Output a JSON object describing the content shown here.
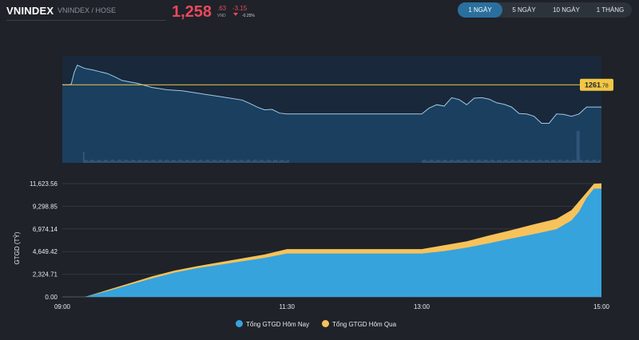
{
  "header": {
    "ticker": "VNINDEX",
    "exchange": "VNINDEX / HOSE",
    "price_main": "1,258",
    "price_decimal": ".63",
    "price_unit": "VND",
    "change": "-3.15",
    "change_pct": "-0.25%"
  },
  "tabs": [
    {
      "label": "1 NGÀY",
      "active": true
    },
    {
      "label": "5 NGÀY",
      "active": false
    },
    {
      "label": "10 NGÀY",
      "active": false
    },
    {
      "label": "1 THÁNG",
      "active": false
    }
  ],
  "colors": {
    "background": "#1f2228",
    "price_line": "#9fc9e6",
    "price_fill": "#1b3f5e",
    "reference": "#f2c744",
    "today": "#36a3dd",
    "yesterday": "#f8c25a",
    "negative": "#e8495d"
  },
  "chart_data": [
    {
      "type": "line",
      "reference_label_main": "1261",
      "reference_label_decimal": ".78",
      "reference_value": 1261.78,
      "ylim": [
        1245,
        1268
      ],
      "x": [
        "09:05",
        "09:06",
        "09:08",
        "09:10",
        "09:15",
        "09:20",
        "09:25",
        "09:30",
        "09:35",
        "09:40",
        "09:50",
        "10:00",
        "10:10",
        "10:20",
        "10:30",
        "10:40",
        "10:50",
        "11:00",
        "11:05",
        "11:10",
        "11:15",
        "11:20",
        "11:25",
        "11:30",
        "11:45",
        "12:00",
        "12:15",
        "12:30",
        "12:45",
        "13:00",
        "13:05",
        "13:10",
        "13:15",
        "13:20",
        "13:25",
        "13:30",
        "13:35",
        "13:40",
        "13:45",
        "13:50",
        "13:55",
        "14:00",
        "14:05",
        "14:10",
        "14:15",
        "14:20",
        "14:25",
        "14:30",
        "14:35",
        "14:40",
        "14:45",
        "14:50",
        "14:55",
        "15:00"
      ],
      "values": [
        1261.8,
        1262.0,
        1264.5,
        1266.0,
        1265.3,
        1265.0,
        1264.6,
        1264.2,
        1263.5,
        1262.7,
        1262.1,
        1261.2,
        1260.7,
        1260.5,
        1260.0,
        1259.5,
        1259.0,
        1258.5,
        1257.8,
        1257.0,
        1256.4,
        1256.5,
        1255.7,
        1255.5,
        1255.5,
        1255.5,
        1255.5,
        1255.5,
        1255.5,
        1255.5,
        1256.8,
        1257.5,
        1257.2,
        1259.0,
        1258.6,
        1257.5,
        1258.9,
        1259.0,
        1258.7,
        1257.9,
        1257.6,
        1257.0,
        1255.6,
        1255.5,
        1255.0,
        1253.5,
        1253.5,
        1255.5,
        1255.4,
        1255.0,
        1255.5,
        1257.0,
        1257.0,
        1257.0
      ]
    },
    {
      "type": "area",
      "ylabel": "GTGD (TỶ)",
      "ylim": [
        0,
        11623.56
      ],
      "yticks": [
        "0.00",
        "2,324.71",
        "4,649.42",
        "6,974.14",
        "9,298.85",
        "11,623.56"
      ],
      "ytick_values": [
        0,
        2324.71,
        4649.42,
        6974.14,
        9298.85,
        11623.56
      ],
      "xticks": [
        "09:00",
        "11:30",
        "13:00",
        "15:00"
      ],
      "x": [
        "09:15",
        "09:30",
        "09:45",
        "10:00",
        "10:15",
        "10:30",
        "10:45",
        "11:00",
        "11:15",
        "11:30",
        "12:00",
        "12:30",
        "13:00",
        "13:15",
        "13:30",
        "13:45",
        "14:00",
        "14:15",
        "14:30",
        "14:40",
        "14:45",
        "14:50",
        "14:55",
        "15:00"
      ],
      "series": [
        {
          "name": "Tổng GTGD Hôm Nay",
          "values": [
            0,
            600,
            1250,
            1900,
            2500,
            2950,
            3300,
            3650,
            4000,
            4450,
            4450,
            4450,
            4450,
            4700,
            5050,
            5500,
            6000,
            6450,
            6950,
            7850,
            8750,
            10150,
            11100,
            11100
          ]
        },
        {
          "name": "Tổng GTGD Hôm Qua",
          "values": [
            0,
            700,
            1400,
            2100,
            2700,
            3150,
            3550,
            3950,
            4350,
            4900,
            4900,
            4900,
            4900,
            5300,
            5700,
            6300,
            6850,
            7450,
            8000,
            8900,
            9800,
            10700,
            11600,
            11650
          ]
        }
      ]
    }
  ]
}
